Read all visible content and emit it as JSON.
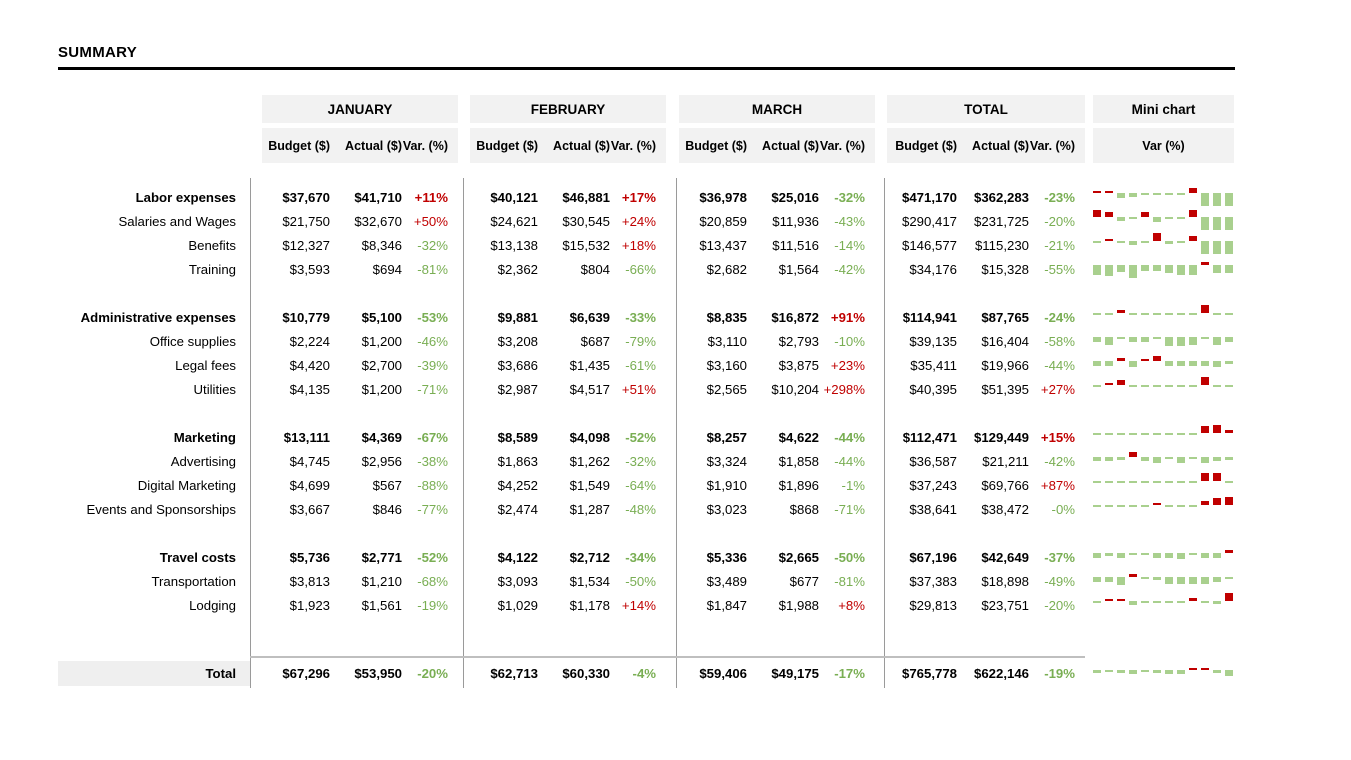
{
  "title": "SUMMARY",
  "header": {
    "month_groups": [
      "JANUARY",
      "FEBRUARY",
      "MARCH",
      "TOTAL"
    ],
    "sub_headers": [
      "Budget ($)",
      "Actual ($)",
      "Var. (%)"
    ],
    "mini_chart_header": "Mini chart",
    "mini_chart_sub": "Var (%)"
  },
  "colors": {
    "positive_var_text": "#c00000",
    "negative_var_text": "#79ae53",
    "spark_positive": "#c00000",
    "spark_negative": "#a9d08e",
    "header_bg": "#f2f2f2",
    "total_label_bg": "#efefef",
    "rule": "#bfbfbf"
  },
  "groups": [
    {
      "rows": [
        {
          "label": "Labor expenses",
          "group_header": true,
          "jan": [
            "$37,670",
            "$41,710",
            "+11%"
          ],
          "feb": [
            "$40,121",
            "$46,881",
            "+17%"
          ],
          "mar": [
            "$36,978",
            "$25,016",
            "-32%"
          ],
          "total": [
            "$471,170",
            "$362,283",
            "-23%"
          ],
          "spark": [
            8,
            8,
            -25,
            -20,
            -8,
            -10,
            -8,
            -8,
            28,
            -70,
            -70,
            -70
          ]
        },
        {
          "label": "Salaries and Wages",
          "group_header": false,
          "jan": [
            "$21,750",
            "$32,670",
            "+50%"
          ],
          "feb": [
            "$24,621",
            "$30,545",
            "+24%"
          ],
          "mar": [
            "$20,859",
            "$11,936",
            "-43%"
          ],
          "total": [
            "$290,417",
            "$231,725",
            "-20%"
          ],
          "spark": [
            40,
            30,
            -20,
            -8,
            28,
            -25,
            -8,
            -5,
            40,
            -70,
            -70,
            -70
          ]
        },
        {
          "label": "Benefits",
          "group_header": false,
          "jan": [
            "$12,327",
            "$8,346",
            "-32%"
          ],
          "feb": [
            "$13,138",
            "$15,532",
            "+18%"
          ],
          "mar": [
            "$13,437",
            "$11,516",
            "-14%"
          ],
          "total": [
            "$146,577",
            "$115,230",
            "-21%"
          ],
          "spark": [
            -10,
            12,
            -5,
            -22,
            -12,
            48,
            -15,
            -8,
            28,
            -70,
            -70,
            -70
          ]
        },
        {
          "label": "Training",
          "group_header": false,
          "jan": [
            "$3,593",
            "$694",
            "-81%"
          ],
          "feb": [
            "$2,362",
            "$804",
            "-66%"
          ],
          "mar": [
            "$2,682",
            "$1,564",
            "-42%"
          ],
          "total": [
            "$34,176",
            "$15,328",
            "-55%"
          ],
          "spark": [
            -55,
            -60,
            -40,
            -70,
            -35,
            -35,
            -45,
            -55,
            -55,
            15,
            -45,
            -45
          ]
        }
      ]
    },
    {
      "rows": [
        {
          "label": "Administrative expenses",
          "group_header": true,
          "jan": [
            "$10,779",
            "$5,100",
            "-53%"
          ],
          "feb": [
            "$9,881",
            "$6,639",
            "-33%"
          ],
          "mar": [
            "$8,835",
            "$16,872",
            "+91%"
          ],
          "total": [
            "$114,941",
            "$87,765",
            "-24%"
          ],
          "spark": [
            -8,
            -5,
            18,
            -12,
            -10,
            -8,
            -8,
            -8,
            -10,
            75,
            -8,
            -5
          ]
        },
        {
          "label": "Office supplies",
          "group_header": false,
          "jan": [
            "$2,224",
            "$1,200",
            "-46%"
          ],
          "feb": [
            "$3,208",
            "$687",
            "-79%"
          ],
          "mar": [
            "$3,110",
            "$2,793",
            "-10%"
          ],
          "total": [
            "$39,135",
            "$16,404",
            "-58%"
          ],
          "spark": [
            -30,
            -45,
            -8,
            -30,
            -28,
            -10,
            -50,
            -52,
            -45,
            -10,
            -45,
            -30
          ]
        },
        {
          "label": "Legal fees",
          "group_header": false,
          "jan": [
            "$4,420",
            "$2,700",
            "-39%"
          ],
          "feb": [
            "$3,686",
            "$1,435",
            "-61%"
          ],
          "mar": [
            "$3,160",
            "$3,875",
            "+23%"
          ],
          "total": [
            "$35,411",
            "$19,966",
            "-44%"
          ],
          "spark": [
            -25,
            -30,
            15,
            -35,
            8,
            28,
            -25,
            -30,
            -30,
            -25,
            -35,
            -15
          ]
        },
        {
          "label": "Utilities",
          "group_header": false,
          "jan": [
            "$4,135",
            "$1,200",
            "-71%"
          ],
          "feb": [
            "$2,987",
            "$4,517",
            "+51%"
          ],
          "mar": [
            "$2,565",
            "$10,204",
            "+298%"
          ],
          "total": [
            "$40,395",
            "$51,395",
            "+27%"
          ],
          "spark": [
            -8,
            10,
            25,
            -8,
            -8,
            -8,
            -8,
            -8,
            -8,
            80,
            -10,
            -8
          ]
        }
      ]
    },
    {
      "rows": [
        {
          "label": "Marketing",
          "group_header": true,
          "jan": [
            "$13,111",
            "$4,369",
            "-67%"
          ],
          "feb": [
            "$8,589",
            "$4,098",
            "-52%"
          ],
          "mar": [
            "$8,257",
            "$4,622",
            "-44%"
          ],
          "total": [
            "$112,471",
            "$129,449",
            "+15%"
          ],
          "spark": [
            -10,
            -8,
            -10,
            -8,
            -8,
            -10,
            -8,
            -10,
            -8,
            40,
            60,
            14
          ]
        },
        {
          "label": "Advertising",
          "group_header": false,
          "jan": [
            "$4,745",
            "$2,956",
            "-38%"
          ],
          "feb": [
            "$1,863",
            "$1,262",
            "-32%"
          ],
          "mar": [
            "$3,324",
            "$1,858",
            "-44%"
          ],
          "total": [
            "$36,587",
            "$21,211",
            "-42%"
          ],
          "spark": [
            -20,
            -20,
            -15,
            28,
            -20,
            -32,
            -10,
            -35,
            -12,
            -35,
            -20,
            -18
          ]
        },
        {
          "label": "Digital Marketing",
          "group_header": false,
          "jan": [
            "$4,699",
            "$567",
            "-88%"
          ],
          "feb": [
            "$4,252",
            "$1,549",
            "-64%"
          ],
          "mar": [
            "$1,910",
            "$1,896",
            "-1%"
          ],
          "total": [
            "$37,243",
            "$69,766",
            "+87%"
          ],
          "spark": [
            -8,
            -8,
            -8,
            -8,
            -8,
            -8,
            -8,
            -8,
            -10,
            75,
            70,
            -10
          ]
        },
        {
          "label": "Events and Sponsorships",
          "group_header": false,
          "jan": [
            "$3,667",
            "$846",
            "-77%"
          ],
          "feb": [
            "$2,474",
            "$1,287",
            "-48%"
          ],
          "mar": [
            "$3,023",
            "$868",
            "-71%"
          ],
          "total": [
            "$38,641",
            "$38,472",
            "-0%"
          ],
          "spark": [
            -10,
            -8,
            -10,
            -8,
            -8,
            8,
            -10,
            -10,
            -8,
            20,
            38,
            60
          ]
        }
      ]
    },
    {
      "rows": [
        {
          "label": "Travel costs",
          "group_header": true,
          "jan": [
            "$5,736",
            "$2,771",
            "-52%"
          ],
          "feb": [
            "$4,122",
            "$2,712",
            "-34%"
          ],
          "mar": [
            "$5,336",
            "$2,665",
            "-50%"
          ],
          "total": [
            "$67,196",
            "$42,649",
            "-37%"
          ],
          "spark": [
            -30,
            -18,
            -30,
            -10,
            -12,
            -25,
            -28,
            -35,
            -8,
            -30,
            -30,
            18
          ]
        },
        {
          "label": "Transportation",
          "group_header": false,
          "jan": [
            "$3,813",
            "$1,210",
            "-68%"
          ],
          "feb": [
            "$3,093",
            "$1,534",
            "-50%"
          ],
          "mar": [
            "$3,489",
            "$677",
            "-81%"
          ],
          "total": [
            "$37,383",
            "$18,898",
            "-49%"
          ],
          "spark": [
            -30,
            -28,
            -45,
            18,
            -10,
            -15,
            -40,
            -40,
            -40,
            -40,
            -28,
            -10
          ]
        },
        {
          "label": "Lodging",
          "group_header": false,
          "jan": [
            "$1,923",
            "$1,561",
            "-19%"
          ],
          "feb": [
            "$1,029",
            "$1,178",
            "+14%"
          ],
          "mar": [
            "$1,847",
            "$1,988",
            "+8%"
          ],
          "total": [
            "$29,813",
            "$23,751",
            "-20%"
          ],
          "spark": [
            -5,
            8,
            8,
            -22,
            -10,
            -12,
            -12,
            -8,
            14,
            -8,
            -14,
            60
          ]
        }
      ]
    }
  ],
  "total_row": {
    "label": "Total",
    "jan": [
      "$67,296",
      "$53,950",
      "-20%"
    ],
    "feb": [
      "$62,713",
      "$60,330",
      "-4%"
    ],
    "mar": [
      "$59,406",
      "$49,175",
      "-17%"
    ],
    "total": [
      "$765,778",
      "$622,146",
      "-19%"
    ],
    "spark": [
      -14,
      -5,
      -14,
      -20,
      -8,
      -14,
      -22,
      -20,
      8,
      8,
      -14,
      -32
    ]
  }
}
